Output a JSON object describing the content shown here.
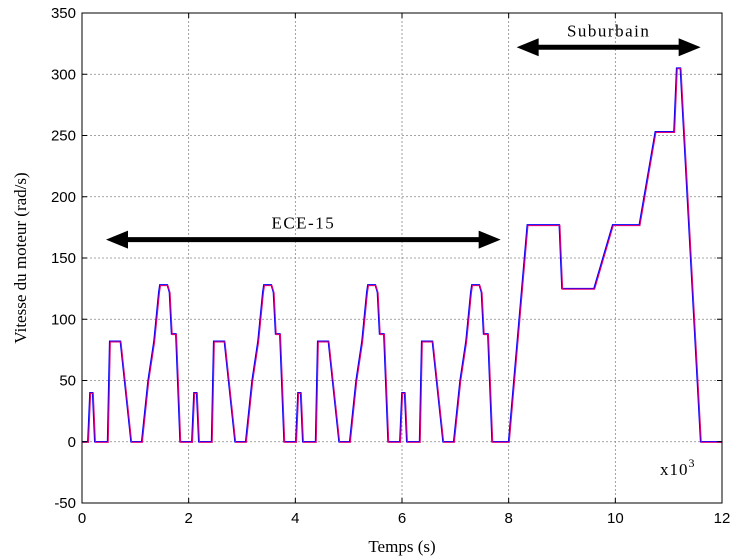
{
  "chart_data": {
    "type": "line",
    "xlabel": "Temps (s)",
    "ylabel": "Vitesse du moteur (rad/s)",
    "xlim": [
      0,
      12
    ],
    "ylim": [
      -50,
      350
    ],
    "xticks": [
      0,
      2,
      4,
      6,
      8,
      10,
      12
    ],
    "yticks": [
      -50,
      0,
      50,
      100,
      150,
      200,
      250,
      300,
      350
    ],
    "x_multiplier_base": "x10",
    "x_multiplier_exp": "3",
    "grid": true,
    "colors": {
      "reference": "#0000ff",
      "measured": "#e0007a"
    },
    "annotations": [
      {
        "text": "ECE-15",
        "x_start": 0.45,
        "x_end": 7.85,
        "y": 165
      },
      {
        "text": "Suburbain",
        "x_start": 8.15,
        "x_end": 11.6,
        "y": 322
      }
    ],
    "ece15_cycle": {
      "x": [
        0,
        0.11,
        0.15,
        0.2,
        0.24,
        0.3,
        0.48,
        0.52,
        0.68,
        0.72,
        0.92,
        1.0,
        1.08,
        1.12,
        1.24,
        1.35,
        1.44,
        1.46,
        1.48,
        1.56,
        1.6,
        1.64,
        1.68,
        1.72,
        1.76,
        1.84,
        1.88,
        1.9,
        1.95
      ],
      "y": [
        0,
        0,
        40,
        40,
        0,
        0,
        0,
        82,
        82,
        82,
        0,
        0,
        0,
        0,
        50,
        82,
        122,
        128,
        128,
        128,
        128,
        122,
        88,
        88,
        88,
        0,
        0,
        0,
        0
      ]
    },
    "cycle_starts": [
      0,
      1.95,
      3.9,
      5.85
    ],
    "suburban": {
      "x": [
        7.8,
        8.0,
        8.35,
        8.45,
        8.9,
        8.95,
        9.0,
        9.6,
        9.95,
        10.4,
        10.45,
        10.75,
        11.1,
        11.15,
        11.22,
        11.25,
        11.6,
        11.65,
        12.0
      ],
      "y": [
        0,
        0,
        177,
        177,
        177,
        177,
        125,
        125,
        177,
        177,
        177,
        253,
        253,
        305,
        305,
        280,
        0,
        0,
        0
      ]
    }
  }
}
